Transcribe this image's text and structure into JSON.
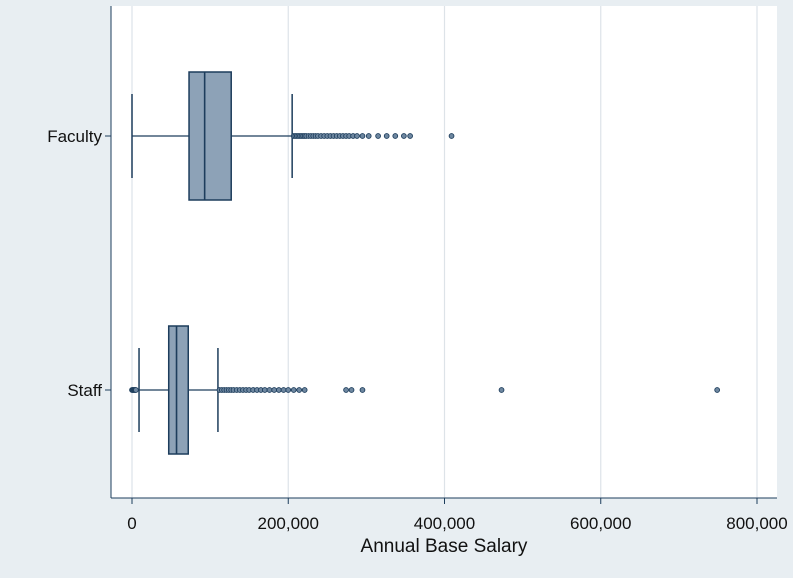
{
  "chart_data": {
    "type": "boxplot",
    "orientation": "horizontal",
    "xlabel": "Annual Base Salary",
    "xlim": [
      0,
      800000
    ],
    "xticks": [
      {
        "value": 0,
        "label": "0"
      },
      {
        "value": 200000,
        "label": "200,000"
      },
      {
        "value": 400000,
        "label": "400,000"
      },
      {
        "value": 600000,
        "label": "600,000"
      },
      {
        "value": 800000,
        "label": "800,000"
      }
    ],
    "grid": true,
    "colors": {
      "box_fill": "#8da2b7",
      "line": "#1d3d5c",
      "grid": "#dde3e8",
      "plot_bg": "#ffffff",
      "page_bg": "#e8eef2"
    },
    "categories": [
      "Faculty",
      "Staff"
    ],
    "series": [
      {
        "category": "Faculty",
        "whisker_low": 0,
        "q1": 73000,
        "median": 93000,
        "q3": 127000,
        "whisker_high": 205000,
        "outliers": [
          207000,
          209000,
          211000,
          213000,
          215000,
          217000,
          219000,
          221000,
          223000,
          226000,
          229000,
          232000,
          235000,
          238000,
          242000,
          246000,
          250000,
          254000,
          258000,
          262000,
          266000,
          270000,
          274000,
          278000,
          283000,
          288000,
          295000,
          303000,
          315000,
          326000,
          337000,
          348000,
          356000,
          409000
        ]
      },
      {
        "category": "Staff",
        "whisker_low": 9000,
        "q1": 47000,
        "median": 57000,
        "q3": 72000,
        "whisker_high": 110000,
        "outliers": [
          0,
          1000,
          2000,
          3000,
          4000,
          5000,
          112000,
          115000,
          118000,
          121000,
          124000,
          127000,
          130000,
          134000,
          138000,
          142000,
          146000,
          150000,
          155000,
          160000,
          165000,
          170000,
          176000,
          182000,
          188000,
          194000,
          200000,
          207000,
          214000,
          221000,
          274000,
          281000,
          295000,
          473000,
          749000
        ]
      }
    ]
  }
}
